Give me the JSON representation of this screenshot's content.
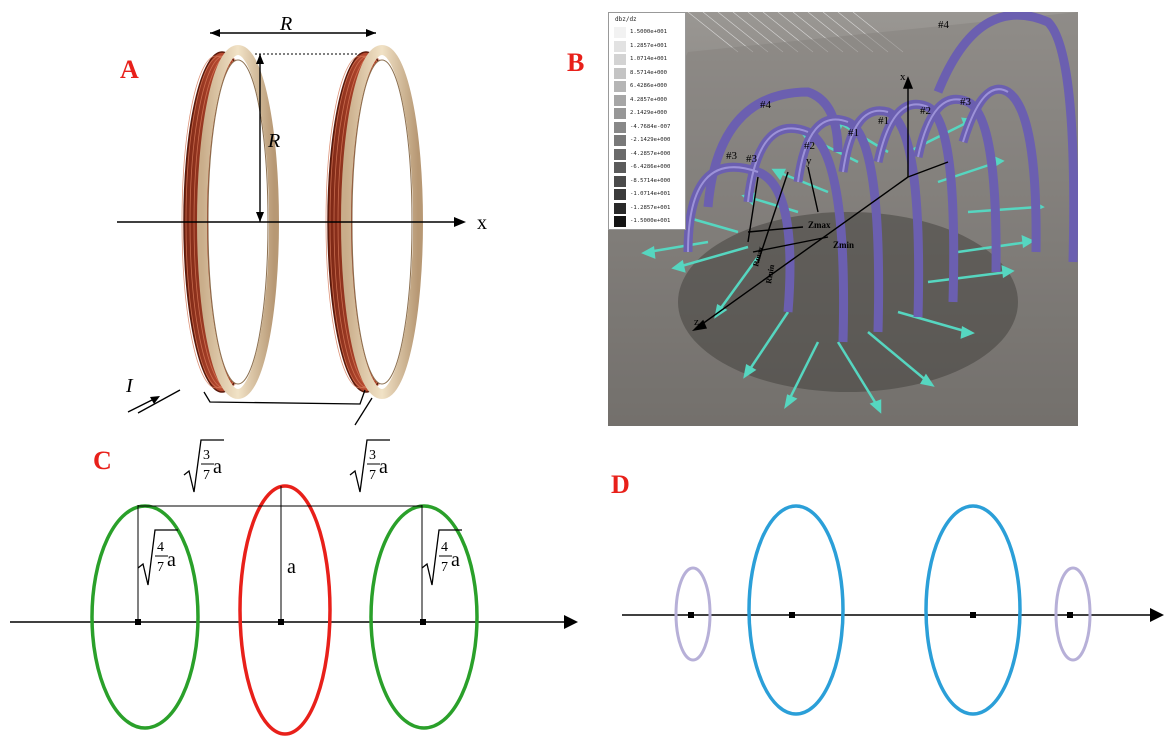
{
  "panels": {
    "a": {
      "label": "A",
      "dim_label_1": "R",
      "dim_label_2": "R",
      "axis_label": "x",
      "current_label": "I"
    },
    "b": {
      "label": "B",
      "legend_title": "dbz/dz",
      "legend_values": [
        "1.5000e+001",
        "1.2857e+001",
        "1.0714e+001",
        "8.5714e+000",
        "6.4286e+000",
        "4.2857e+000",
        "2.1429e+000",
        "-4.7684e-007",
        "-2.1429e+000",
        "-4.2857e+000",
        "-6.4286e+000",
        "-8.5714e+000",
        "-1.0714e+001",
        "-1.2857e+001",
        "-1.5000e+001"
      ],
      "legend_colors": [
        "#f2f2f2",
        "#e2e2e2",
        "#d3d3d3",
        "#c4c4c4",
        "#b5b5b5",
        "#a6a6a6",
        "#979797",
        "#888888",
        "#797979",
        "#6a6a6a",
        "#5b5b5b",
        "#4b4b4b",
        "#3b3b3b",
        "#2a2a2a",
        "#141414"
      ],
      "coil_labels": [
        "#4",
        "#4",
        "#3",
        "#2",
        "#1",
        "#1",
        "#2",
        "#3",
        "#3"
      ],
      "axis_labels": {
        "x": "x",
        "y": "y",
        "z": "z"
      },
      "annotations": {
        "zmax": "Zmax",
        "zmin": "Zmin",
        "rmax": "Rmax",
        "rmin": "Rmin"
      },
      "coil_color": "#6b5fb0",
      "arrow_color": "#56d6c0"
    },
    "c": {
      "label": "C",
      "spacing_frac_1": "3",
      "spacing_frac_2": "7",
      "radius_frac_1": "4",
      "radius_frac_2": "7",
      "symbol_a": "a",
      "outer_color": "#2aa02a",
      "center_color": "#e8201a"
    },
    "d": {
      "label": "D",
      "inner_color": "#2b9fd8",
      "outer_color": "#b7b0d8"
    }
  }
}
